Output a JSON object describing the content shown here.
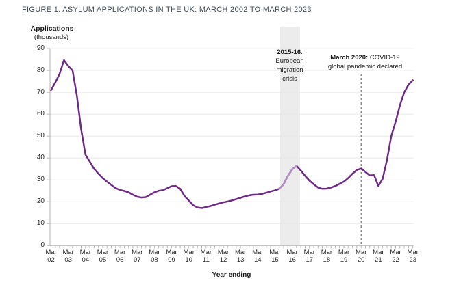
{
  "figure": {
    "title": "FIGURE 1. ASYLUM APPLICATIONS IN THE UK: MARCH 2002 TO MARCH 2023"
  },
  "chart_data": {
    "type": "line",
    "title": "FIGURE 1. ASYLUM APPLICATIONS IN THE UK: MARCH 2002 TO MARCH 2023",
    "ylabel_line1": "Applications",
    "ylabel_line2": "(thousands)",
    "xlabel": "Year ending",
    "unit": "thousands",
    "frequency": "quarterly",
    "start": "Mar 2002",
    "end": "Mar 2023",
    "ylim": [
      0,
      90
    ],
    "y_ticks": [
      0,
      10,
      20,
      30,
      40,
      50,
      60,
      70,
      80,
      90
    ],
    "x_tick_prefix": "Mar",
    "x_tick_years": [
      "02",
      "03",
      "04",
      "05",
      "06",
      "07",
      "08",
      "09",
      "10",
      "11",
      "12",
      "13",
      "14",
      "15",
      "16",
      "17",
      "18",
      "19",
      "20",
      "21",
      "22",
      "23"
    ],
    "grid": "horizontal",
    "legend": "none",
    "series": [
      {
        "name": "Asylum applications in the UK (rolling year, thousands)",
        "color": "#6e2a85",
        "values": [
          71,
          74.5,
          78.5,
          84.7,
          82,
          80,
          68.5,
          53,
          41.5,
          38.3,
          35,
          32.8,
          30.8,
          29.2,
          27.7,
          26.2,
          25.4,
          24.9,
          24.3,
          23.2,
          22.3,
          21.9,
          22.1,
          23.2,
          24.3,
          25,
          25.3,
          26.2,
          27.1,
          27.2,
          25.9,
          22.6,
          20.5,
          18.4,
          17.4,
          17.1,
          17.6,
          18,
          18.6,
          19.2,
          19.7,
          20.1,
          20.6,
          21.2,
          21.8,
          22.4,
          22.9,
          23.2,
          23.3,
          23.6,
          24.1,
          24.7,
          25.2,
          25.9,
          28,
          31.8,
          34.8,
          36.4,
          34.2,
          31.8,
          29.6,
          28,
          26.5,
          25.9,
          26,
          26.5,
          27.2,
          28.2,
          29.2,
          30.8,
          32.8,
          34.5,
          35.2,
          33.6,
          32,
          32.2,
          27.2,
          30.5,
          39,
          50,
          56.5,
          64,
          70,
          73.5,
          75.5
        ]
      }
    ],
    "highlight_segment": {
      "label": "2015-16 European migration crisis",
      "color": "#b18cc7",
      "from": "Jun 2015",
      "to": "Jun 2016",
      "from_index": 53,
      "to_index": 57
    },
    "annotations": [
      {
        "id": "migration-crisis-band",
        "kind": "band",
        "from_index": 53.2,
        "to_index": 57.8,
        "fill": "#ececec",
        "text_bold": "2015-16",
        "text_rest": ":",
        "lines": [
          "European",
          "migration",
          "crisis"
        ]
      },
      {
        "id": "pandemic-line",
        "kind": "vline",
        "at": "Mar 2020",
        "at_index": 72,
        "stroke": "#595959",
        "text_bold": "March 2020:",
        "text_rest": " COVID-19",
        "line2": "global pandemic declared"
      }
    ],
    "colors": {
      "line": "#6e2a85",
      "highlight": "#b18cc7",
      "band": "#ececec",
      "grid": "#e8e8e8",
      "axis": "#b3b3b3",
      "title": "#3d4a56"
    }
  }
}
